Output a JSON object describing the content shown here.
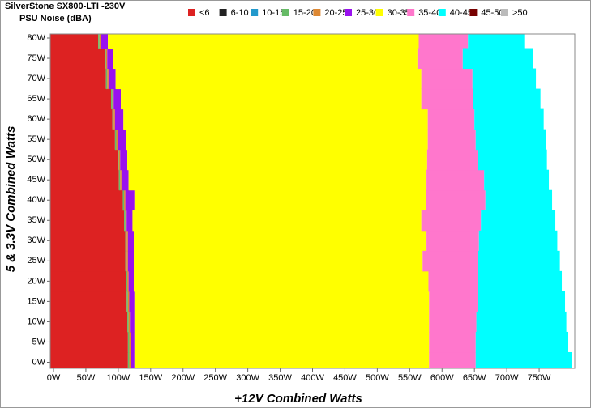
{
  "chart_data": {
    "type": "contour",
    "title": "SilverStone SX800-LTI -230V",
    "subtitle": "PSU Noise (dBA)",
    "x_label": "+12V Combined Watts",
    "y_label": "5 & 3.3V Combined Watts",
    "xlim": [
      -5,
      805
    ],
    "ylim": [
      -1.5,
      81
    ],
    "xticks": [
      {
        "value": 0,
        "label": "0W"
      },
      {
        "value": 50,
        "label": "50W"
      },
      {
        "value": 100,
        "label": "100W"
      },
      {
        "value": 150,
        "label": "150W"
      },
      {
        "value": 200,
        "label": "200W"
      },
      {
        "value": 250,
        "label": "250W"
      },
      {
        "value": 300,
        "label": "300W"
      },
      {
        "value": 350,
        "label": "350W"
      },
      {
        "value": 400,
        "label": "400W"
      },
      {
        "value": 450,
        "label": "450W"
      },
      {
        "value": 500,
        "label": "500W"
      },
      {
        "value": 550,
        "label": "550W"
      },
      {
        "value": 600,
        "label": "600W"
      },
      {
        "value": 650,
        "label": "650W"
      },
      {
        "value": 700,
        "label": "700W"
      },
      {
        "value": 750,
        "label": "750W"
      }
    ],
    "yticks": [
      {
        "value": 0,
        "label": "0W"
      },
      {
        "value": 5,
        "label": "5W"
      },
      {
        "value": 10,
        "label": "10W"
      },
      {
        "value": 15,
        "label": "15W"
      },
      {
        "value": 20,
        "label": "20W"
      },
      {
        "value": 25,
        "label": "25W"
      },
      {
        "value": 30,
        "label": "30W"
      },
      {
        "value": 35,
        "label": "35W"
      },
      {
        "value": 40,
        "label": "40W"
      },
      {
        "value": 45,
        "label": "45W"
      },
      {
        "value": 50,
        "label": "50W"
      },
      {
        "value": 55,
        "label": "55W"
      },
      {
        "value": 60,
        "label": "60W"
      },
      {
        "value": 65,
        "label": "65W"
      },
      {
        "value": 70,
        "label": "70W"
      },
      {
        "value": 75,
        "label": "75W"
      },
      {
        "value": 80,
        "label": "80W"
      }
    ],
    "y": [
      0,
      5,
      10,
      15,
      20,
      25,
      30,
      35,
      40,
      45,
      50,
      55,
      60,
      65,
      70,
      75,
      80
    ],
    "series": [
      {
        "name": "<6",
        "color": "#dd2222",
        "values": [
          115,
          115,
          114,
          113,
          112,
          111,
          111,
          109,
          107,
          101,
          99,
          95,
          91,
          89,
          81,
          79,
          69
        ]
      },
      {
        "name": "6-10",
        "color": "#222222"
      },
      {
        "name": "10-15",
        "color": "#2299cc"
      },
      {
        "name": "15-20",
        "color": "#66bb66",
        "values": [
          117,
          117,
          116,
          115,
          114,
          113,
          113,
          111,
          109,
          103,
          101,
          97,
          93,
          91,
          83,
          81,
          71
        ]
      },
      {
        "name": "20-25",
        "color": "#dd8833",
        "values": [
          119,
          119,
          118,
          117,
          116,
          115,
          115,
          113,
          111,
          105,
          103,
          99,
          95,
          93,
          85,
          83,
          73
        ]
      },
      {
        "name": "25-30",
        "color": "#9911ee",
        "values": [
          125,
          125,
          125,
          125,
          124,
          124,
          124,
          122,
          125,
          116,
          114,
          112,
          108,
          104,
          96,
          92,
          84
        ]
      },
      {
        "name": "30-35",
        "color": "#ffff00",
        "values": [
          580,
          580,
          580,
          580,
          579,
          570,
          576,
          568,
          575,
          576,
          577,
          578,
          578,
          568,
          568,
          562,
          564
        ]
      },
      {
        "name": "35-40",
        "color": "#ff77cc",
        "values": [
          652,
          652,
          653,
          655,
          655,
          656,
          657,
          660,
          667,
          665,
          655,
          652,
          650,
          648,
          647,
          632,
          640
        ]
      },
      {
        "name": "40-45",
        "color": "#00ffff",
        "values": [
          800,
          795,
          792,
          790,
          785,
          782,
          778,
          775,
          770,
          765,
          762,
          760,
          757,
          752,
          745,
          740,
          727
        ]
      },
      {
        "name": "45-50",
        "color": "#770000"
      },
      {
        "name": ">50",
        "color": "#bbbbbb"
      }
    ]
  }
}
